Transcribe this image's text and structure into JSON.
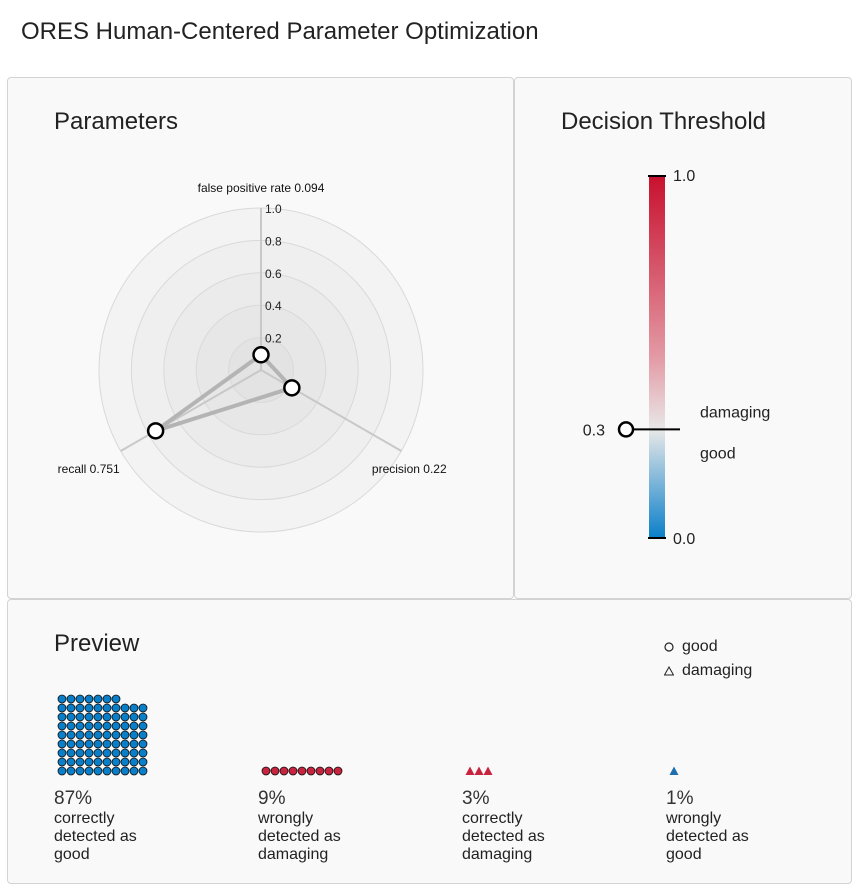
{
  "app_title": "ORES Human-Centered Parameter Optimization",
  "parameters": {
    "title": "Parameters",
    "axes": [
      {
        "label": "false positive rate",
        "value": 0.094
      },
      {
        "label": "precision",
        "value": 0.22
      },
      {
        "label": "recall",
        "value": 0.751
      }
    ],
    "scale_ticks": [
      "0.2",
      "0.4",
      "0.6",
      "0.8",
      "1.0"
    ]
  },
  "threshold": {
    "title": "Decision Threshold",
    "max_label": "1.0",
    "min_label": "0.0",
    "value": 0.3,
    "value_label": "0.3",
    "above_label": "damaging",
    "below_label": "good",
    "colors": {
      "top": "#c8102e",
      "mid": "#e8e8e8",
      "bottom": "#0a7fc9"
    }
  },
  "preview": {
    "title": "Preview",
    "legend": [
      {
        "symbol": "circle-icon",
        "label": "good"
      },
      {
        "symbol": "triangle-icon",
        "label": "damaging"
      }
    ],
    "stats": [
      {
        "percent": "87%",
        "description": "correctly detected as good",
        "count": 87,
        "shape": "circle",
        "color": "#0a7fc9"
      },
      {
        "percent": "9%",
        "description": "wrongly detected as damaging",
        "count": 9,
        "shape": "circle",
        "color": "#c8243f"
      },
      {
        "percent": "3%",
        "description": "correctly detected as damaging",
        "count": 3,
        "shape": "triangle",
        "color": "#c8243f"
      },
      {
        "percent": "1%",
        "description": "wrongly detected as good",
        "count": 1,
        "shape": "triangle",
        "color": "#1f6fb0"
      }
    ]
  }
}
